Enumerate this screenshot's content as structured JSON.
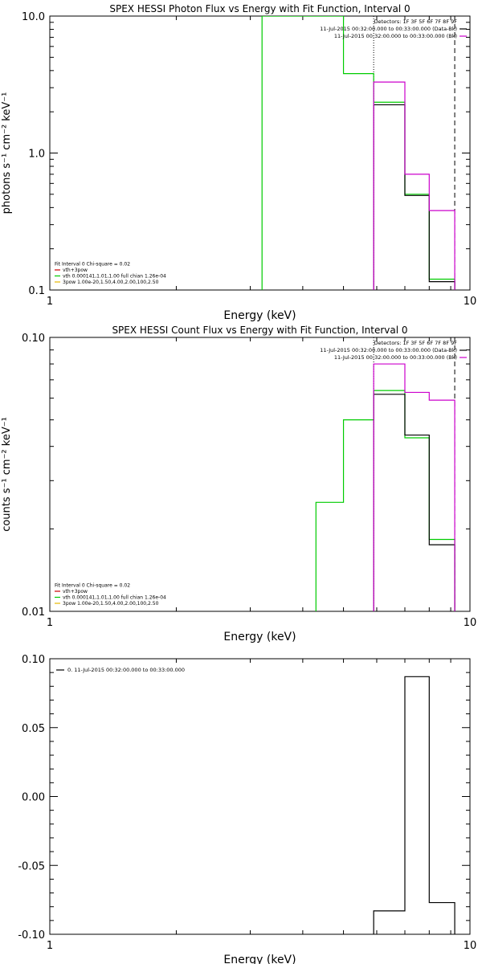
{
  "chart_data": [
    {
      "type": "line",
      "title": "SPEX HESSI Photon Flux vs Energy with Fit Function, Interval 0",
      "xlabel": "Energy (keV)",
      "ylabel": "photons s⁻¹ cm⁻² keV⁻¹",
      "xscale": "log",
      "yscale": "log",
      "xlim": [
        1,
        10
      ],
      "ylim": [
        0.1,
        10
      ],
      "xticks": [
        {
          "v": 1,
          "label": "1"
        },
        {
          "v": 10,
          "label": "10"
        }
      ],
      "yticks": [
        {
          "v": 0.1,
          "label": "0.1"
        },
        {
          "v": 1,
          "label": "1.0"
        },
        {
          "v": 10,
          "label": "10.0"
        }
      ],
      "legend_right": [
        {
          "text": "Detectors: 1F 3F 5F 6F 7F 8F 9F",
          "color": ""
        },
        {
          "text": "11-Jul-2015 00:32:00.000 to 00:33:00.000 (Data-Bk)",
          "color": "#000000"
        },
        {
          "text": "11-Jul-2015 00:32:00.000 to 00:33:00.000 (Bk)",
          "color": "#cc00cc"
        }
      ],
      "legend_left": [
        {
          "text": "Fit Interval 0   Chi-square = 0.02",
          "color": ""
        },
        {
          "text": "vth+3pow",
          "color": "#cc0000"
        },
        {
          "text": "vth 0.000141,1.01,1.00  full chian 1.26e-04",
          "color": "#00cc00"
        },
        {
          "text": "3pow 1.00e-20,1.50,4.00,2.00,100,2.50",
          "color": "#e6b800"
        }
      ],
      "vlines": [
        {
          "x": 5.9,
          "style": "dotted"
        },
        {
          "x": 9.2,
          "style": "dashed"
        }
      ],
      "series": [
        {
          "color": "#00cc00",
          "edges": [
            3.2,
            5.0,
            5.9,
            7.0,
            8.0,
            9.2
          ],
          "values": [
            10.0,
            3.8,
            2.35,
            0.5,
            0.12
          ]
        },
        {
          "color": "#000000",
          "edges": [
            5.9,
            7.0,
            8.0,
            9.2
          ],
          "values": [
            2.25,
            0.49,
            0.115
          ]
        },
        {
          "color": "#cc00cc",
          "edges": [
            5.9,
            7.0,
            8.0,
            9.2
          ],
          "values": [
            3.3,
            0.7,
            0.38
          ]
        }
      ]
    },
    {
      "type": "line",
      "title": "SPEX HESSI Count Flux vs Energy with Fit Function, Interval 0",
      "xlabel": "Energy (keV)",
      "ylabel": "counts s⁻¹ cm⁻² keV⁻¹",
      "xscale": "log",
      "yscale": "log",
      "xlim": [
        1,
        10
      ],
      "ylim": [
        0.01,
        0.1
      ],
      "xticks": [
        {
          "v": 1,
          "label": "1"
        },
        {
          "v": 10,
          "label": "10"
        }
      ],
      "yticks": [
        {
          "v": 0.01,
          "label": "0.01"
        },
        {
          "v": 0.1,
          "label": "0.10"
        }
      ],
      "legend_right": [
        {
          "text": "Detectors: 1F 3F 5F 6F 7F 8F 9F",
          "color": ""
        },
        {
          "text": "11-Jul-2015 00:32:00.000 to 00:33:00.000 (Data-Bk)",
          "color": "#000000"
        },
        {
          "text": "11-Jul-2015 00:32:00.000 to 00:33:00.000 (Bk)",
          "color": "#cc00cc"
        }
      ],
      "legend_left": [
        {
          "text": "Fit Interval 0   Chi-square = 0.02",
          "color": ""
        },
        {
          "text": "vth+3pow",
          "color": "#cc0000"
        },
        {
          "text": "vth 0.000141,1.01,1.00  full chian 1.26e-04",
          "color": "#00cc00"
        },
        {
          "text": "3pow 1.00e-20,1.50,4.00,2.00,100,2.50",
          "color": "#e6b800"
        }
      ],
      "vlines": [
        {
          "x": 5.9,
          "style": "dotted"
        },
        {
          "x": 9.2,
          "style": "dashed"
        }
      ],
      "series": [
        {
          "color": "#00cc00",
          "edges": [
            4.3,
            5.0,
            5.9,
            7.0,
            8.0,
            9.2
          ],
          "values": [
            0.025,
            0.05,
            0.064,
            0.043,
            0.0183
          ]
        },
        {
          "color": "#000000",
          "edges": [
            5.9,
            7.0,
            8.0,
            9.2
          ],
          "values": [
            0.062,
            0.044,
            0.0175
          ]
        },
        {
          "color": "#cc00cc",
          "edges": [
            5.9,
            7.0,
            8.0,
            9.2
          ],
          "values": [
            0.08,
            0.063,
            0.059
          ]
        }
      ]
    },
    {
      "type": "line",
      "title": "",
      "xlabel": "Energy (keV)",
      "ylabel": "",
      "xscale": "log",
      "yscale": "linear",
      "xlim": [
        1,
        10
      ],
      "ylim": [
        -0.1,
        0.1
      ],
      "xticks": [
        {
          "v": 1,
          "label": "1"
        },
        {
          "v": 10,
          "label": "10"
        }
      ],
      "yticks": [
        {
          "v": 0.1,
          "label": "0.10"
        },
        {
          "v": 0.05,
          "label": "0.05"
        },
        {
          "v": 0.0,
          "label": "0.00"
        },
        {
          "v": -0.05,
          "label": "-0.05"
        },
        {
          "v": -0.1,
          "label": "-0.10"
        }
      ],
      "legend_right": [],
      "legend_left_top": [
        {
          "text": "0. 11-Jul-2015 00:32:00.000 to 00:33:00.000",
          "color": "#000000"
        }
      ],
      "legend_left": [],
      "vlines": [],
      "series": [
        {
          "color": "#000000",
          "edges": [
            5.9,
            7.0,
            8.0,
            9.2
          ],
          "values": [
            -0.083,
            0.087,
            -0.077
          ]
        }
      ]
    }
  ]
}
